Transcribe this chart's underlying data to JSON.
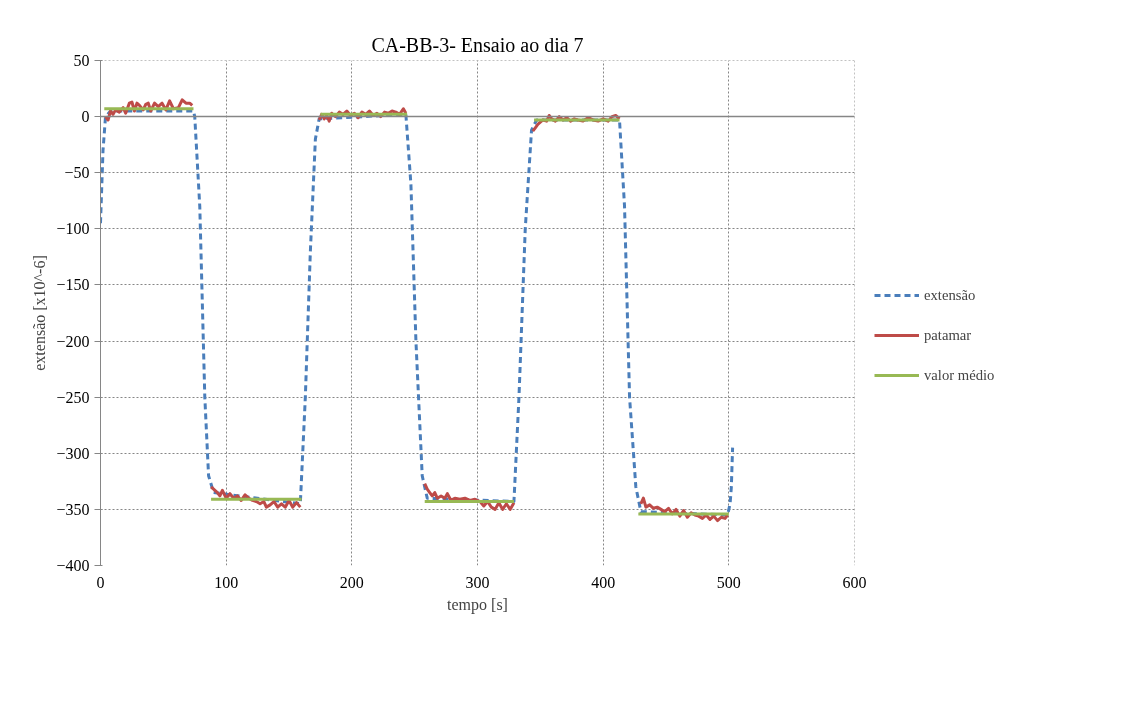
{
  "chart_data": {
    "type": "line",
    "title": "CA-BB-3- Ensaio ao dia 7",
    "xlabel": "tempo [s]",
    "ylabel": "extensão [x10^-6]",
    "xlim": [
      0,
      600
    ],
    "xticks": [
      0,
      100,
      200,
      300,
      400,
      500,
      600
    ],
    "ylim": [
      -400,
      50
    ],
    "yticks": [
      -400,
      -350,
      -300,
      -250,
      -200,
      -150,
      -100,
      -50,
      0,
      50
    ],
    "grid": true,
    "legend": "right",
    "ref_lines": [
      {
        "axis": "y",
        "value": 0,
        "color": "#868686",
        "line_style": "solid"
      }
    ],
    "series": [
      {
        "name": "extensão",
        "color": "#4a7ebb",
        "line_style": "dashed",
        "x": [
          0,
          2,
          4,
          8,
          74,
          75,
          79,
          83,
          86,
          90,
          159,
          163,
          167,
          171,
          174,
          243,
          247,
          251,
          256,
          260,
          329,
          333,
          338,
          343,
          347,
          413,
          417,
          421,
          426,
          430,
          499,
          501,
          502,
          503
        ],
        "values": [
          -95,
          -30,
          0,
          5,
          5,
          0,
          -80,
          -250,
          -320,
          -335,
          -345,
          -250,
          -120,
          -20,
          -2,
          2,
          -60,
          -200,
          -320,
          -340,
          -343,
          -250,
          -100,
          -12,
          -3,
          -3,
          -80,
          -250,
          -330,
          -352,
          -355,
          -345,
          -330,
          -295
        ]
      },
      {
        "name": "patamar",
        "color": "#be4b48",
        "line_style": "solid",
        "x": [
          4,
          6,
          8,
          10,
          12,
          15,
          18,
          20,
          23,
          25,
          27,
          29,
          31,
          34,
          36,
          38,
          40,
          43,
          46,
          49,
          52,
          55,
          58,
          62,
          65,
          68,
          71,
          73,
          80,
          88,
          90,
          93,
          95,
          97,
          100,
          103,
          106,
          109,
          112,
          115,
          118,
          121,
          124,
          127,
          130,
          132,
          135,
          138,
          141,
          144,
          147,
          150,
          153,
          156,
          159,
          166,
          174,
          176,
          178,
          180,
          182,
          184,
          187,
          190,
          193,
          196,
          199,
          202,
          205,
          208,
          211,
          214,
          217,
          220,
          223,
          226,
          229,
          232,
          235,
          238,
          241,
          243,
          250,
          258,
          260,
          262,
          264,
          266,
          268,
          271,
          274,
          276,
          279,
          282,
          286,
          290,
          294,
          298,
          302,
          305,
          308,
          311,
          314,
          317,
          320,
          323,
          326,
          329,
          336,
          344,
          346,
          348,
          350,
          352,
          355,
          357,
          359,
          362,
          365,
          368,
          371,
          374,
          377,
          380,
          384,
          388,
          392,
          396,
          400,
          404,
          407,
          410,
          413,
          420,
          430,
          432,
          434,
          437,
          440,
          443,
          446,
          449,
          452,
          455,
          458,
          461,
          464,
          467,
          470,
          473,
          476,
          479,
          482,
          485,
          488,
          491,
          494,
          497,
          499
        ],
        "values": [
          0,
          -3,
          5,
          2,
          6,
          4,
          8,
          3,
          12,
          13,
          5,
          12,
          10,
          6,
          11,
          12,
          5,
          12,
          9,
          12,
          6,
          14,
          7,
          8,
          15,
          12,
          12,
          10,
          null,
          -330,
          -332,
          -335,
          -338,
          -333,
          -340,
          -336,
          -340,
          -338,
          -342,
          -337,
          -340,
          -342,
          -343,
          -345,
          -343,
          -348,
          -346,
          -343,
          -348,
          -345,
          -348,
          -342,
          -348,
          -344,
          -348,
          null,
          -3,
          2,
          -2,
          1,
          -4,
          3,
          0,
          4,
          2,
          5,
          1,
          3,
          -1,
          4,
          2,
          5,
          1,
          3,
          0,
          4,
          3,
          5,
          4,
          2,
          7,
          3,
          null,
          -327,
          -332,
          -335,
          -338,
          -335,
          -340,
          -338,
          -340,
          -336,
          -342,
          -340,
          -341,
          -340,
          -342,
          -341,
          -343,
          -347,
          -343,
          -348,
          -350,
          -344,
          -350,
          -345,
          -350,
          -344,
          null,
          -13,
          -10,
          -7,
          -5,
          -3,
          -4,
          1,
          -2,
          -4,
          0,
          -3,
          -1,
          -4,
          -2,
          -3,
          -4,
          -1,
          -3,
          -4,
          -2,
          -4,
          0,
          1,
          -2,
          null,
          -345,
          -340,
          -348,
          -346,
          -349,
          -348,
          -350,
          -352,
          -349,
          -354,
          -350,
          -356,
          -351,
          -357,
          -353,
          -355,
          -356,
          -358,
          -355,
          -359,
          -356,
          -360,
          -357,
          -358,
          -355
        ]
      },
      {
        "name": "valor médio",
        "color": "#98b954",
        "line_style": "solid",
        "x": [
          3,
          74,
          80,
          88,
          160,
          166,
          175,
          244,
          250,
          258,
          329,
          336,
          345,
          413,
          420,
          428,
          500
        ],
        "values": [
          7,
          7,
          null,
          -341,
          -341,
          null,
          2,
          2,
          null,
          -343,
          -343,
          null,
          -3,
          -3,
          null,
          -354,
          -354
        ]
      }
    ]
  }
}
